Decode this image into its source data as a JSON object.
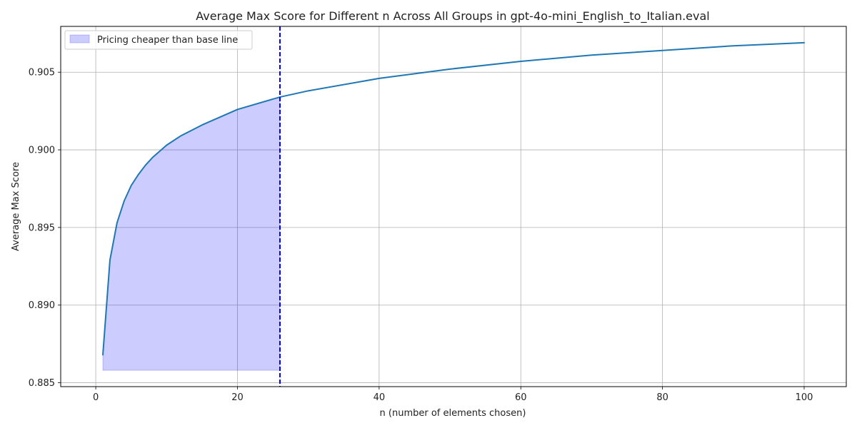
{
  "chart_data": {
    "type": "line",
    "title": "Average Max Score for Different n Across All Groups in gpt-4o-mini_English_to_Italian.eval",
    "xlabel": "n (number of elements chosen)",
    "ylabel": "Average Max Score",
    "xlim": [
      -4.95,
      105.95
    ],
    "ylim": [
      0.88475,
      0.90795
    ],
    "x_ticks": [
      0,
      20,
      40,
      60,
      80,
      100
    ],
    "x_tick_labels": [
      "0",
      "20",
      "40",
      "60",
      "80",
      "100"
    ],
    "y_ticks": [
      0.885,
      0.89,
      0.895,
      0.9,
      0.905
    ],
    "y_tick_labels": [
      "0.885",
      "0.890",
      "0.895",
      "0.900",
      "0.905"
    ],
    "grid": true,
    "series": [
      {
        "name": "",
        "color": "#1f77b4",
        "x": [
          1,
          2,
          3,
          4,
          5,
          6,
          7,
          8,
          10,
          12,
          15,
          20,
          26,
          30,
          40,
          50,
          60,
          70,
          80,
          90,
          100
        ],
        "y": [
          0.8868,
          0.8929,
          0.8953,
          0.8967,
          0.8977,
          0.8984,
          0.899,
          0.8995,
          0.9003,
          0.9009,
          0.9016,
          0.9026,
          0.9034,
          0.9038,
          0.9046,
          0.9052,
          0.9057,
          0.9061,
          0.9064,
          0.9067,
          0.9069
        ]
      }
    ],
    "shaded_region": {
      "label": "Pricing cheaper than base line",
      "color": "#0000ff",
      "x_start": 1,
      "x_end": 26,
      "y_base": 0.8858
    },
    "vline": {
      "x": 26,
      "color": "#0000ff",
      "style": "dashed"
    },
    "legend": {
      "position": "top-left",
      "entries": [
        "Pricing cheaper than base line"
      ]
    }
  }
}
